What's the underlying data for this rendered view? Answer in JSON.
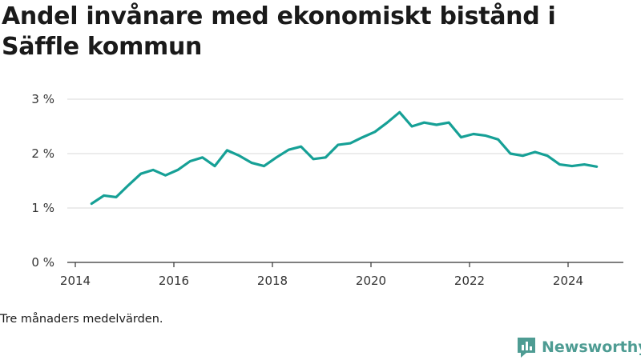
{
  "title": "Andel invånare med ekonomiskt bistånd i Säffle kommun",
  "note": "Tre månaders medelvärden.",
  "brand": {
    "name": "Newsworthy",
    "icon": "newsworthy-logo-icon",
    "color": "#4e9c93"
  },
  "colors": {
    "line": "#16a096",
    "grid": "#d9d9d9",
    "axis": "#333333"
  },
  "chart_data": {
    "type": "line",
    "title": "Andel invånare med ekonomiskt bistånd i Säffle kommun",
    "xlabel": "",
    "ylabel": "",
    "ylim": [
      0,
      3
    ],
    "xlim": [
      2014,
      2025.1
    ],
    "grid": true,
    "y_ticks": [
      {
        "value": 0,
        "label": "0 %"
      },
      {
        "value": 1,
        "label": "1 %"
      },
      {
        "value": 2,
        "label": "2 %"
      },
      {
        "value": 3,
        "label": "3 %"
      }
    ],
    "x_ticks": [
      {
        "value": 2014,
        "label": "2014"
      },
      {
        "value": 2016,
        "label": "2016"
      },
      {
        "value": 2018,
        "label": "2018"
      },
      {
        "value": 2020,
        "label": "2020"
      },
      {
        "value": 2022,
        "label": "2022"
      },
      {
        "value": 2024,
        "label": "2024"
      }
    ],
    "series": [
      {
        "x": [
          2014.33,
          2014.58,
          2014.83,
          2015.08,
          2015.33,
          2015.58,
          2015.83,
          2016.08,
          2016.33,
          2016.58,
          2016.83,
          2017.08,
          2017.33,
          2017.58,
          2017.83,
          2018.08,
          2018.33,
          2018.58,
          2018.83,
          2019.08,
          2019.33,
          2019.58,
          2019.83,
          2020.08,
          2020.33,
          2020.58,
          2020.83,
          2021.08,
          2021.33,
          2021.58,
          2021.83,
          2022.08,
          2022.33,
          2022.58,
          2022.83,
          2023.08,
          2023.33,
          2023.58,
          2023.83,
          2024.08,
          2024.33,
          2024.58
        ],
        "y": [
          1.08,
          1.23,
          1.2,
          1.42,
          1.63,
          1.7,
          1.6,
          1.7,
          1.86,
          1.93,
          1.77,
          2.06,
          1.96,
          1.83,
          1.77,
          1.93,
          2.07,
          2.13,
          1.9,
          1.93,
          2.16,
          2.19,
          2.3,
          2.4,
          2.57,
          2.76,
          2.5,
          2.57,
          2.53,
          2.57,
          2.3,
          2.36,
          2.33,
          2.26,
          2.0,
          1.96,
          2.03,
          1.96,
          1.8,
          1.77,
          1.8,
          1.76
        ]
      }
    ]
  }
}
